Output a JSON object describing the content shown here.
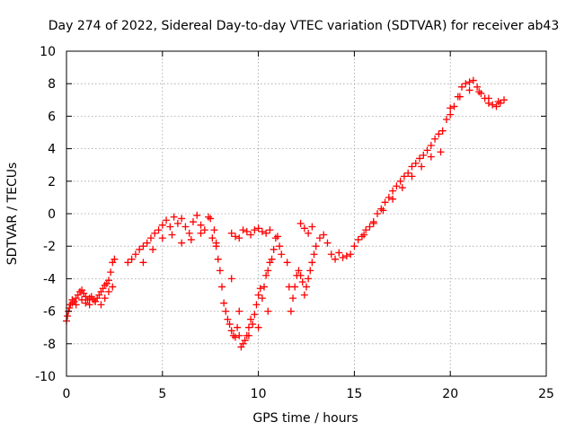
{
  "chart_data": {
    "type": "scatter",
    "title": "Day 274 of 2022, Sidereal Day-to-day VTEC variation (SDTVAR) for receiver ab43",
    "xlabel": "GPS time / hours",
    "ylabel": "SDTVAR / TECUs",
    "xlim": [
      0,
      25
    ],
    "ylim": [
      -10,
      10
    ],
    "xticks": [
      "0",
      "5",
      "10",
      "15",
      "20",
      "25"
    ],
    "yticks": [
      "-10",
      "-8",
      "-6",
      "-4",
      "-2",
      "0",
      "2",
      "4",
      "6",
      "8",
      "10"
    ],
    "grid": true,
    "marker": "+",
    "series_color": "#ff0000",
    "series": [
      {
        "x": [
          0.0,
          0.05,
          0.1,
          0.15,
          0.2,
          0.3,
          0.4,
          0.5,
          0.6,
          0.7,
          0.8,
          0.9,
          1.0,
          1.1,
          1.2,
          1.3,
          1.4,
          1.5,
          1.6,
          1.7,
          1.8,
          1.9,
          2.0,
          2.1,
          2.2,
          2.3,
          2.4,
          2.5,
          0.3,
          0.5,
          0.8,
          1.0,
          1.2,
          1.5,
          1.8,
          2.0,
          2.2,
          2.4,
          3.2,
          3.4,
          3.6,
          3.8,
          4.0,
          4.2,
          4.4,
          4.6,
          4.8,
          5.0,
          5.2,
          5.4,
          5.6,
          5.8,
          6.0,
          6.2,
          6.4,
          6.6,
          6.8,
          7.0,
          7.2,
          7.4,
          7.6,
          7.8,
          4.0,
          4.5,
          5.0,
          5.5,
          6.0,
          6.5,
          7.0,
          7.5,
          7.7,
          7.8,
          7.9,
          8.0,
          8.1,
          8.2,
          8.3,
          8.4,
          8.5,
          8.6,
          8.7,
          8.8,
          8.9,
          9.0,
          9.1,
          9.2,
          9.3,
          9.4,
          9.5,
          9.6,
          9.7,
          9.8,
          9.9,
          10.0,
          10.1,
          10.2,
          10.3,
          10.4,
          10.5,
          10.6,
          10.7,
          10.8,
          10.9,
          11.0,
          11.1,
          11.2,
          8.6,
          8.8,
          9.0,
          9.2,
          9.4,
          9.6,
          9.8,
          10.0,
          10.2,
          10.4,
          10.6,
          8.6,
          9.0,
          9.5,
          10.0,
          10.5,
          11.5,
          11.6,
          11.7,
          11.8,
          11.9,
          12.0,
          12.1,
          12.2,
          12.3,
          12.4,
          12.5,
          12.6,
          12.7,
          12.8,
          12.9,
          13.0,
          13.2,
          13.4,
          13.6,
          13.8,
          14.0,
          14.2,
          14.4,
          14.6,
          14.8,
          12.2,
          12.4,
          12.6,
          12.8,
          15.0,
          15.2,
          15.4,
          15.6,
          15.8,
          16.0,
          16.2,
          16.4,
          16.6,
          16.8,
          17.0,
          17.2,
          17.4,
          17.6,
          17.8,
          18.0,
          18.2,
          18.4,
          18.6,
          18.8,
          19.0,
          19.2,
          19.4,
          19.6,
          15.5,
          16.0,
          16.5,
          17.0,
          17.5,
          18.0,
          18.5,
          19.0,
          19.5,
          19.8,
          20.0,
          20.2,
          20.4,
          20.6,
          20.8,
          21.0,
          21.2,
          21.4,
          21.6,
          21.8,
          22.0,
          22.2,
          22.4,
          22.6,
          22.8,
          20.0,
          20.5,
          21.0,
          21.5,
          22.0,
          22.5
        ],
        "y": [
          -6.6,
          -6.3,
          -6.0,
          -5.8,
          -5.6,
          -5.5,
          -5.4,
          -5.2,
          -5.0,
          -4.8,
          -4.7,
          -4.9,
          -5.1,
          -5.3,
          -5.2,
          -5.1,
          -5.3,
          -5.4,
          -5.2,
          -5.0,
          -4.8,
          -4.6,
          -4.4,
          -4.3,
          -4.1,
          -3.6,
          -3.0,
          -2.8,
          -5.3,
          -5.6,
          -5.3,
          -5.5,
          -5.6,
          -5.4,
          -5.6,
          -5.2,
          -4.8,
          -4.5,
          -3.0,
          -2.8,
          -2.5,
          -2.2,
          -2.0,
          -1.8,
          -1.5,
          -1.2,
          -1.0,
          -0.7,
          -0.4,
          -0.8,
          -0.2,
          -0.6,
          -0.3,
          -0.8,
          -1.2,
          -0.5,
          -0.1,
          -0.7,
          -1.0,
          -0.2,
          -1.5,
          -1.8,
          -3.0,
          -2.2,
          -1.5,
          -1.3,
          -1.8,
          -1.6,
          -1.2,
          -0.3,
          -1.0,
          -2.0,
          -2.8,
          -3.5,
          -4.5,
          -5.5,
          -6.0,
          -6.5,
          -6.8,
          -7.2,
          -7.5,
          -7.6,
          -7.0,
          -7.5,
          -8.2,
          -8.0,
          -7.8,
          -7.5,
          -7.0,
          -6.5,
          -6.8,
          -6.2,
          -5.6,
          -5.0,
          -4.6,
          -5.2,
          -4.5,
          -3.8,
          -3.5,
          -3.0,
          -2.8,
          -2.2,
          -1.5,
          -1.4,
          -2.0,
          -2.5,
          -1.2,
          -1.4,
          -1.5,
          -1.0,
          -1.1,
          -1.3,
          -1.0,
          -0.9,
          -1.1,
          -1.2,
          -1.0,
          -4.0,
          -6.0,
          -7.5,
          -7.0,
          -6.0,
          -3.0,
          -4.5,
          -6.0,
          -5.2,
          -4.5,
          -3.8,
          -3.5,
          -3.8,
          -4.2,
          -5.0,
          -4.5,
          -4.0,
          -3.5,
          -3.0,
          -2.5,
          -2.0,
          -1.5,
          -1.3,
          -1.8,
          -2.5,
          -2.8,
          -2.4,
          -2.7,
          -2.6,
          -2.5,
          -0.6,
          -0.9,
          -1.2,
          -0.8,
          -2.0,
          -1.6,
          -1.4,
          -1.0,
          -0.8,
          -0.5,
          0.0,
          0.3,
          0.7,
          1.0,
          1.4,
          1.7,
          2.0,
          2.3,
          2.5,
          2.9,
          3.1,
          3.4,
          3.6,
          3.9,
          4.2,
          4.6,
          4.9,
          5.1,
          -1.3,
          -0.6,
          0.2,
          0.9,
          1.6,
          2.3,
          2.9,
          3.5,
          3.8,
          5.8,
          6.1,
          6.6,
          7.2,
          7.8,
          8.0,
          8.1,
          8.2,
          7.8,
          7.4,
          7.1,
          6.8,
          6.7,
          6.6,
          6.8,
          7.0,
          6.5,
          7.2,
          7.6,
          7.5,
          7.1,
          6.9
        ]
      }
    ]
  }
}
